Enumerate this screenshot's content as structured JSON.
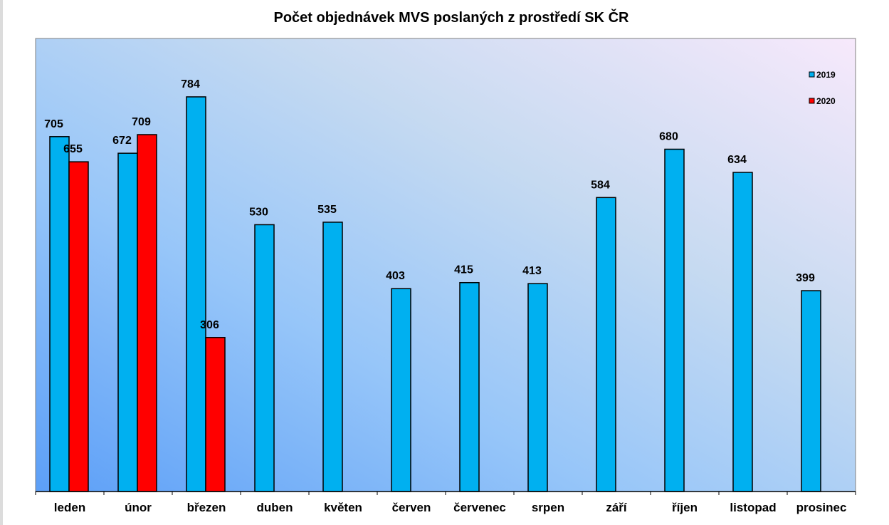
{
  "chart_data": {
    "type": "bar",
    "title": "Počet objednávek MVS poslaných z prostředí SK ČR",
    "categories": [
      "leden",
      "únor",
      "březen",
      "duben",
      "květen",
      "červen",
      "červenec",
      "srpen",
      "září",
      "říjen",
      "listopad",
      "prosinec"
    ],
    "series": [
      {
        "name": "2019",
        "color": "#00b0f0",
        "values": [
          705,
          672,
          784,
          530,
          535,
          403,
          415,
          413,
          584,
          680,
          634,
          399
        ]
      },
      {
        "name": "2020",
        "color": "#ff0000",
        "values": [
          655,
          709,
          306,
          null,
          null,
          null,
          null,
          null,
          null,
          null,
          null,
          null
        ]
      }
    ],
    "ylim": [
      0,
      900
    ],
    "grid": false,
    "legend": "top-right",
    "data_labels": true
  }
}
